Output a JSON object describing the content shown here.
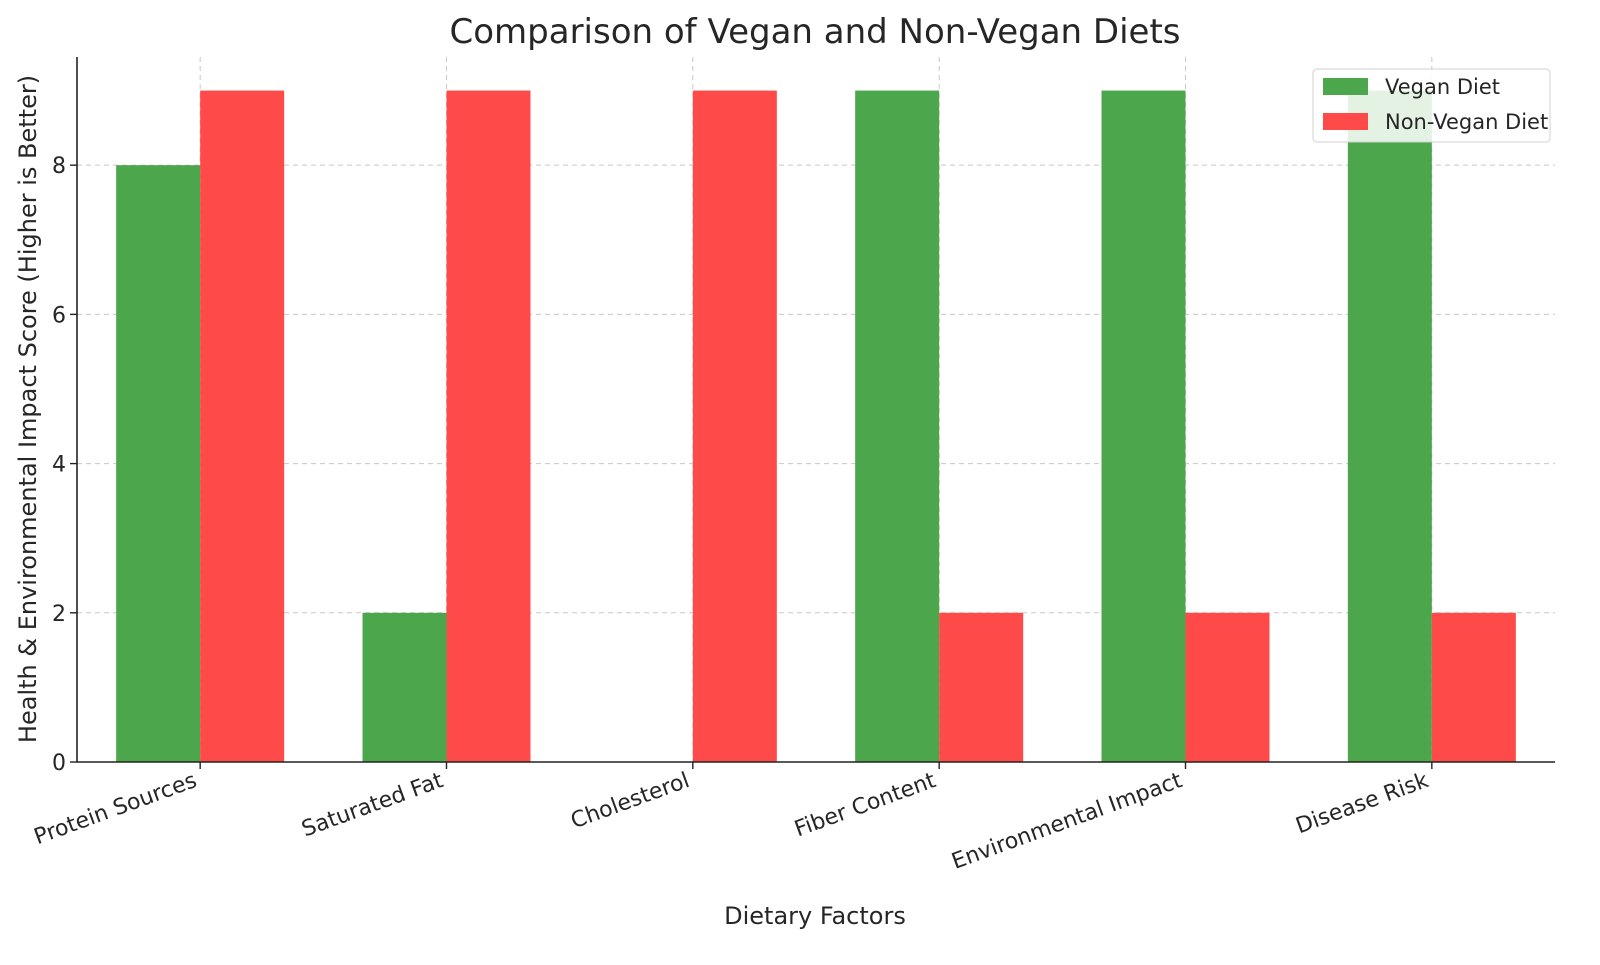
{
  "chart_data": {
    "type": "bar",
    "title": "Comparison of Vegan and Non-Vegan Diets",
    "xlabel": "Dietary Factors",
    "ylabel": "Health & Environmental Impact Score (Higher is Better)",
    "categories": [
      "Protein Sources",
      "Saturated Fat",
      "Cholesterol",
      "Fiber Content",
      "Environmental Impact",
      "Disease Risk"
    ],
    "series": [
      {
        "name": "Vegan Diet",
        "values": [
          8,
          2,
          0,
          9,
          9,
          9
        ],
        "color": "#4ca64c"
      },
      {
        "name": "Non-Vegan Diet",
        "values": [
          9,
          9,
          9,
          2,
          2,
          2
        ],
        "color": "#ff4a4a"
      }
    ],
    "yticks": [
      0,
      2,
      4,
      6,
      8
    ],
    "ylim": [
      0,
      9.45
    ],
    "grid": true,
    "legend_position": "top-right",
    "xtick_rotation": 20
  }
}
